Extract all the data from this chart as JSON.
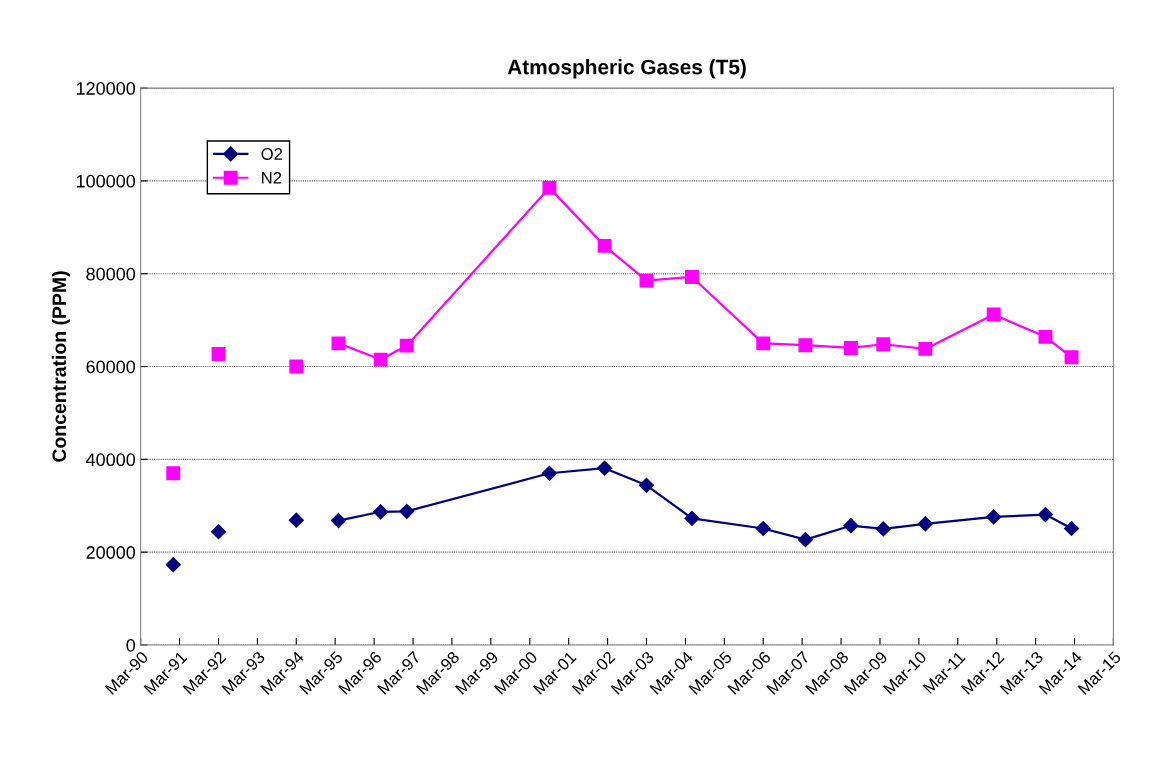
{
  "chart_data": {
    "type": "line",
    "title": "Atmospheric Gases (T5)",
    "ylabel": "Concentration (PPM)",
    "x": [
      "1991-01",
      "1991-08",
      "1992-03",
      "1993-03",
      "1994-03",
      "1994-10",
      "1995-04",
      "1996-05",
      "1997-01",
      "2000-09",
      "2002-02",
      "2003-03",
      "2004-05",
      "2006-03",
      "2007-04",
      "2008-06",
      "2009-04",
      "2010-05",
      "2012-02",
      "2013-06",
      "2014-02"
    ],
    "series": [
      {
        "name": "O2",
        "color": "#000080",
        "marker": "diamond",
        "values": [
          17300,
          null,
          24400,
          null,
          26900,
          null,
          26800,
          28700,
          28800,
          37000,
          38100,
          34400,
          27300,
          25100,
          22700,
          25700,
          25000,
          26100,
          27600,
          28100,
          25100
        ]
      },
      {
        "name": "N2",
        "color": "#ff00ff",
        "marker": "square",
        "values": [
          37000,
          null,
          62700,
          null,
          60000,
          null,
          65000,
          61500,
          64500,
          98500,
          86000,
          78500,
          79300,
          65000,
          64600,
          64000,
          64800,
          63800,
          71200,
          66400,
          62000
        ]
      }
    ],
    "xlim": [
      "1990-03",
      "2015-03"
    ],
    "xticks": [
      {
        "value": "1990-03",
        "label": "Mar-90"
      },
      {
        "value": "1991-03",
        "label": "Mar-91"
      },
      {
        "value": "1992-03",
        "label": "Mar-92"
      },
      {
        "value": "1993-03",
        "label": "Mar-93"
      },
      {
        "value": "1994-03",
        "label": "Mar-94"
      },
      {
        "value": "1995-03",
        "label": "Mar-95"
      },
      {
        "value": "1996-03",
        "label": "Mar-96"
      },
      {
        "value": "1997-03",
        "label": "Mar-97"
      },
      {
        "value": "1998-03",
        "label": "Mar-98"
      },
      {
        "value": "1999-03",
        "label": "Mar-99"
      },
      {
        "value": "2000-03",
        "label": "Mar-00"
      },
      {
        "value": "2001-03",
        "label": "Mar-01"
      },
      {
        "value": "2002-03",
        "label": "Mar-02"
      },
      {
        "value": "2003-03",
        "label": "Mar-03"
      },
      {
        "value": "2004-03",
        "label": "Mar-04"
      },
      {
        "value": "2005-03",
        "label": "Mar-05"
      },
      {
        "value": "2006-03",
        "label": "Mar-06"
      },
      {
        "value": "2007-03",
        "label": "Mar-07"
      },
      {
        "value": "2008-03",
        "label": "Mar-08"
      },
      {
        "value": "2009-03",
        "label": "Mar-09"
      },
      {
        "value": "2010-03",
        "label": "Mar-10"
      },
      {
        "value": "2011-03",
        "label": "Mar-11"
      },
      {
        "value": "2012-03",
        "label": "Mar-12"
      },
      {
        "value": "2013-03",
        "label": "Mar-13"
      },
      {
        "value": "2014-03",
        "label": "Mar-14"
      },
      {
        "value": "2015-03",
        "label": "Mar-15"
      }
    ],
    "ylim": [
      0,
      120000
    ],
    "yticks": [
      0,
      20000,
      40000,
      60000,
      80000,
      100000,
      120000
    ],
    "grid": "y",
    "legend": "top left",
    "line_style": "solid"
  }
}
